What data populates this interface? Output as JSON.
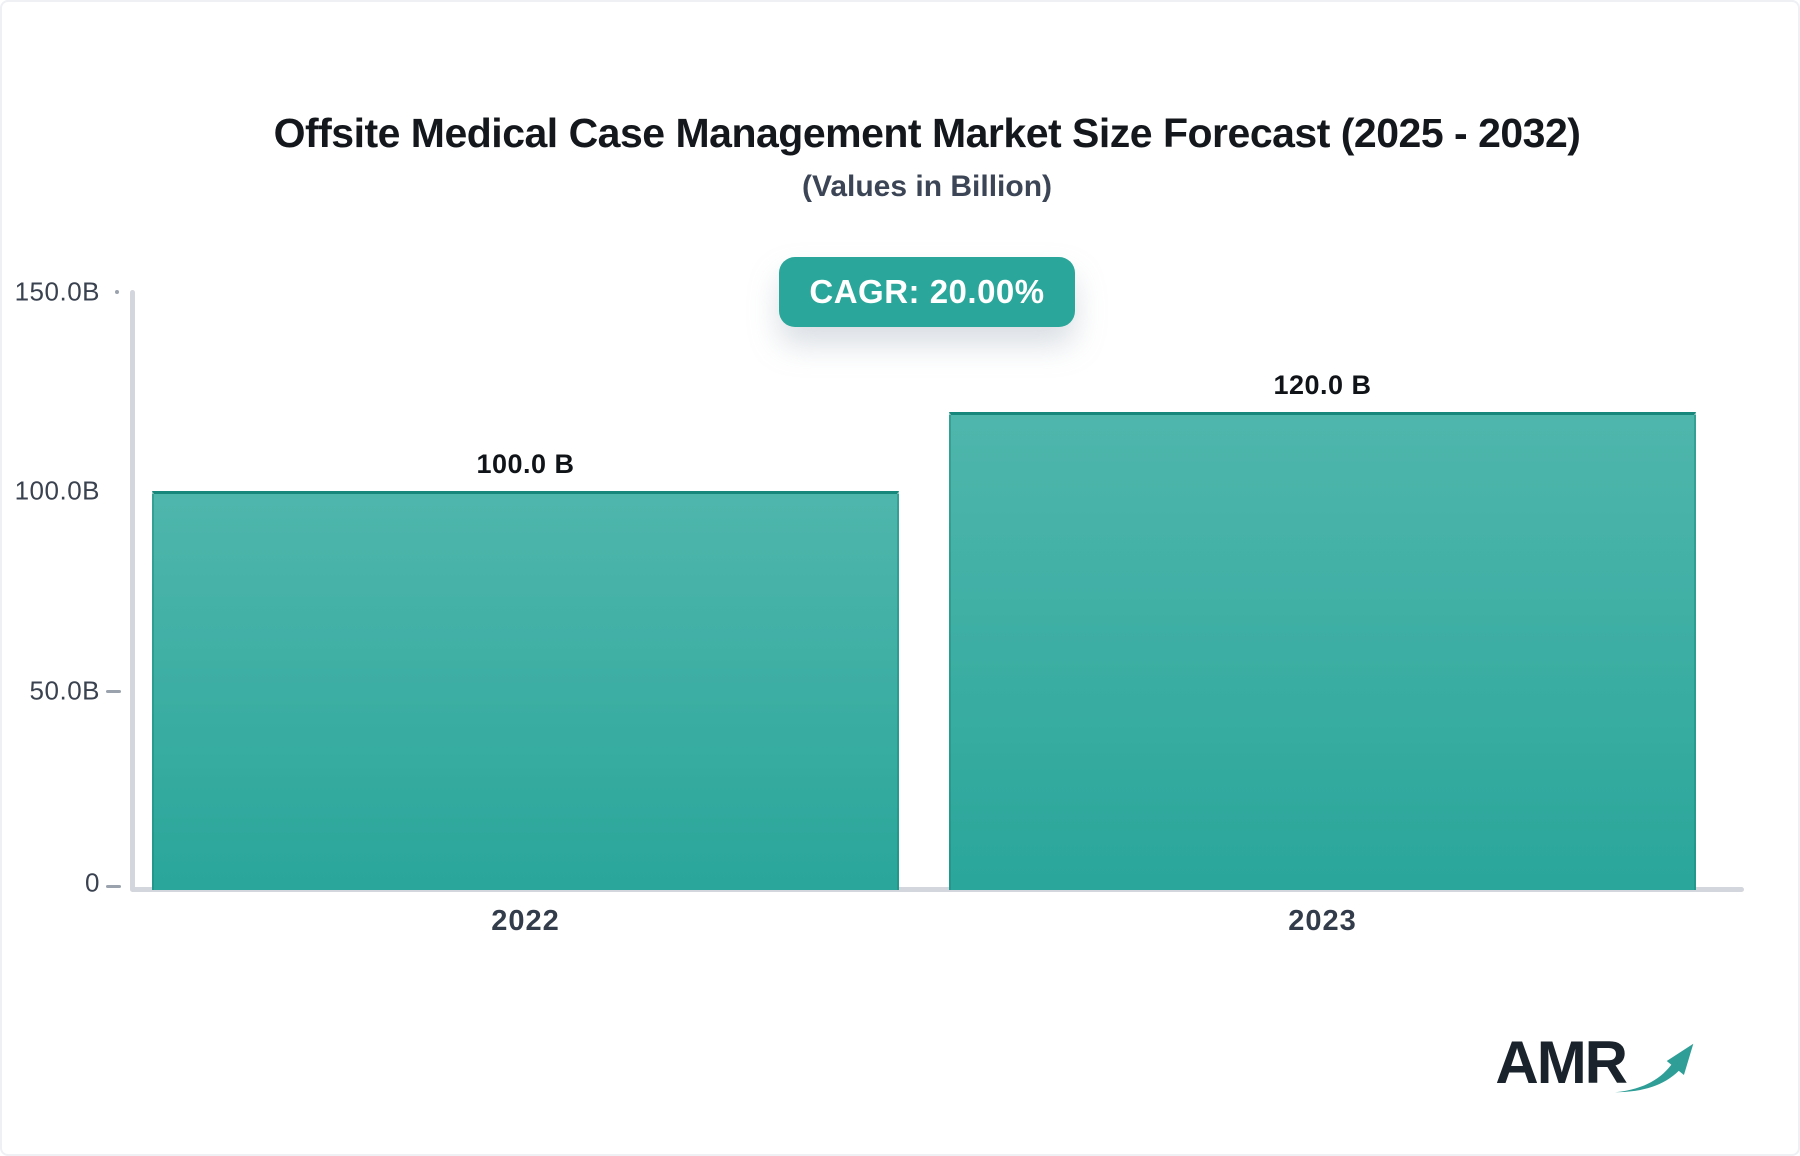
{
  "title": "Offsite Medical Case Management Market Size Forecast (2025 - 2032)",
  "subtitle": "(Values in Billion)",
  "cagr_label": "CAGR: 20.00%",
  "watermark": "AMR",
  "colors": {
    "accent_teal": "#2aa79a",
    "bar_gradient_top": "#4fb6ac",
    "bar_gradient_bottom": "#2aa69a",
    "bar_stroke": "#17877b",
    "axis_gray": "#d3d6dc",
    "tick_gray": "#9aa2ad",
    "title_text": "#14181d",
    "subtitle_text": "#3b4555",
    "logo_text": "#1a232b",
    "logo_arrow": "#2f9e97"
  },
  "chart_data": {
    "type": "bar",
    "title": "Offsite Medical Case Management Market Size Forecast (2025 - 2032)",
    "subtitle": "(Values in Billion)",
    "unit": "Billion",
    "categories": [
      "2022",
      "2023"
    ],
    "values": [
      100.0,
      120.0
    ],
    "value_labels": [
      "100.0 B",
      "120.0 B"
    ],
    "cagr_percent": 20.0,
    "ylim": [
      0,
      150
    ],
    "yticks": [
      {
        "value": 150,
        "label": "150.0B"
      },
      {
        "value": 100,
        "label": "100.0B"
      },
      {
        "value": 50,
        "label": "50.0B"
      },
      {
        "value": 0,
        "label": "0"
      }
    ],
    "grid": false,
    "legend_position": "none"
  }
}
